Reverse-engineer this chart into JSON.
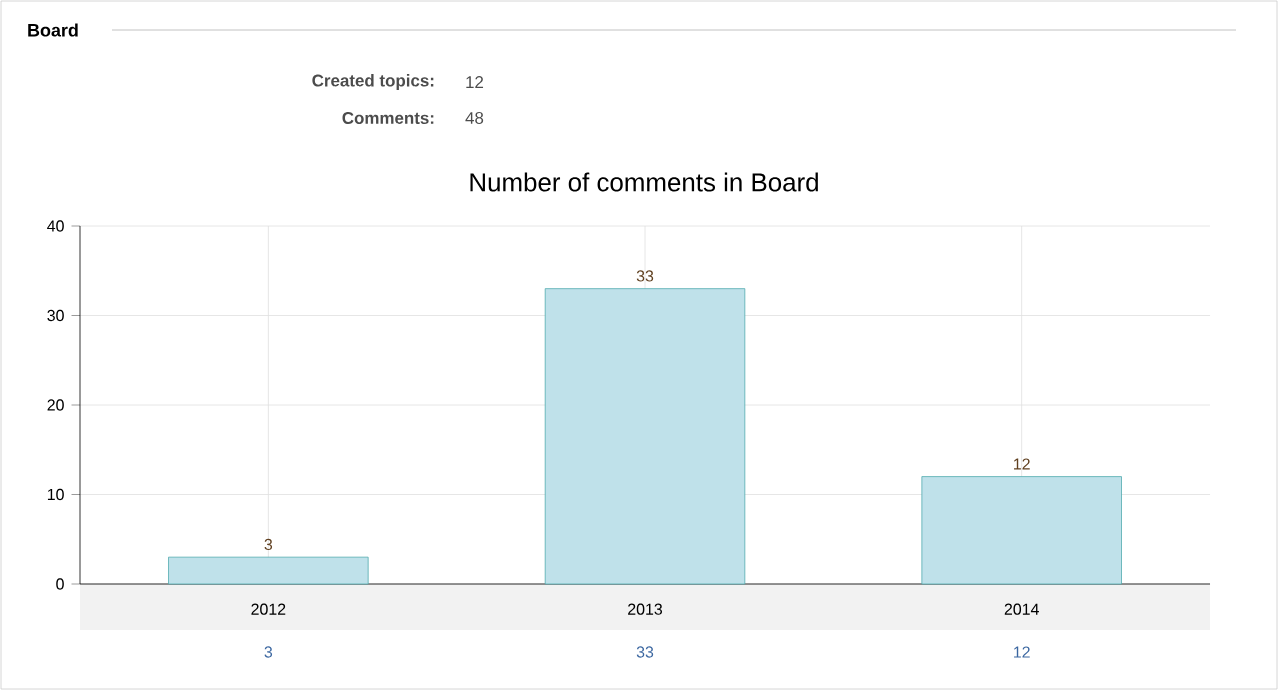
{
  "chart_data": {
    "type": "bar",
    "title": "Number of comments in Board",
    "annotations": [
      "Board",
      "Created topics:",
      "12",
      "Comments:",
      "48"
    ],
    "categories": [
      "2012",
      "2013",
      "2014"
    ],
    "values": [
      3,
      33,
      12
    ],
    "value_labels": [
      "3",
      "33",
      "12"
    ],
    "color": "#bfe1ea",
    "ylim": [
      0,
      40
    ],
    "yticks": [
      0,
      10,
      20,
      30,
      40
    ],
    "grid": true
  }
}
